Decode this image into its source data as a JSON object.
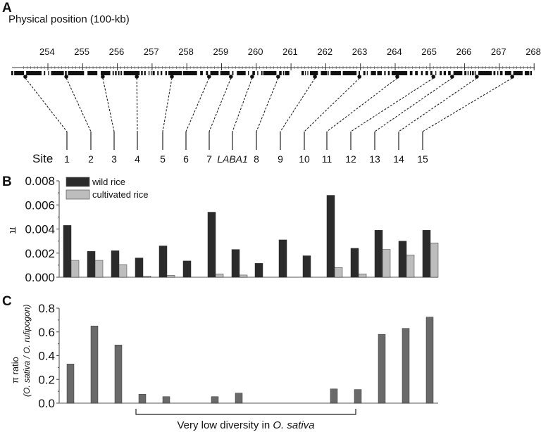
{
  "panel_a": {
    "letter": "A",
    "title": "Physical position (100-kb)",
    "axis_ticks": [
      "254",
      "255",
      "256",
      "257",
      "258",
      "259",
      "260",
      "261",
      "262",
      "263",
      "264",
      "265",
      "266",
      "267",
      "268"
    ],
    "site_label": "Site",
    "sites": [
      "1",
      "2",
      "3",
      "4",
      "5",
      "6",
      "7",
      "LABA1",
      "8",
      "9",
      "10",
      "11",
      "12",
      "13",
      "14",
      "15"
    ],
    "site_positions": [
      253.35,
      254.53,
      255.58,
      256.56,
      257.57,
      258.64,
      259.27,
      259.88,
      260.63,
      261.69,
      262.97,
      264.06,
      265.1,
      265.64,
      266.35,
      267.37
    ]
  },
  "chart_data": [
    {
      "panel": "B",
      "type": "bar",
      "ylabel": "π",
      "ylim": [
        0,
        0.008
      ],
      "yticks": [
        "0.000",
        "0.002",
        "0.004",
        "0.006",
        "0.008"
      ],
      "categories": [
        "1",
        "2",
        "3",
        "4",
        "5",
        "6",
        "7",
        "LABA1",
        "8",
        "9",
        "10",
        "11",
        "12",
        "13",
        "14",
        "15"
      ],
      "legend_position": "top-left",
      "series": [
        {
          "name": "wild rice",
          "color": "#2b2b2b",
          "values": [
            0.0043,
            0.00215,
            0.0022,
            0.0016,
            0.0026,
            0.00135,
            0.0054,
            0.0023,
            0.00115,
            0.0031,
            0.00178,
            0.0068,
            0.0024,
            0.0039,
            0.003,
            0.0039
          ]
        },
        {
          "name": "cultivated rice",
          "color": "#bdbdbd",
          "values": [
            0.0014,
            0.0014,
            0.00105,
            0.0001,
            0.00015,
            0,
            0.00028,
            0.00018,
            0,
            0,
            0,
            0.0008,
            0.00028,
            0.0023,
            0.00185,
            0.00285
          ]
        }
      ]
    },
    {
      "panel": "C",
      "type": "bar",
      "ylabel": "π ratio",
      "ylabel2": "(O. sativa / O. rufipogon)",
      "ylim": [
        0,
        0.8
      ],
      "yticks": [
        "0.0",
        "0.2",
        "0.4",
        "0.6",
        "0.8"
      ],
      "categories": [
        "1",
        "2",
        "3",
        "4",
        "5",
        "6",
        "7",
        "LABA1",
        "8",
        "9",
        "10",
        "11",
        "12",
        "13",
        "14",
        "15"
      ],
      "series": [
        {
          "color": "#6a6a6a",
          "values": [
            0.33,
            0.65,
            0.49,
            0.075,
            0.055,
            null,
            0.055,
            0.085,
            null,
            null,
            null,
            0.12,
            0.115,
            0.58,
            0.63,
            0.725
          ]
        }
      ],
      "annotation": {
        "text": "Very low diversity in ",
        "italic": "O. sativa",
        "from": "4",
        "to": "12"
      }
    }
  ]
}
